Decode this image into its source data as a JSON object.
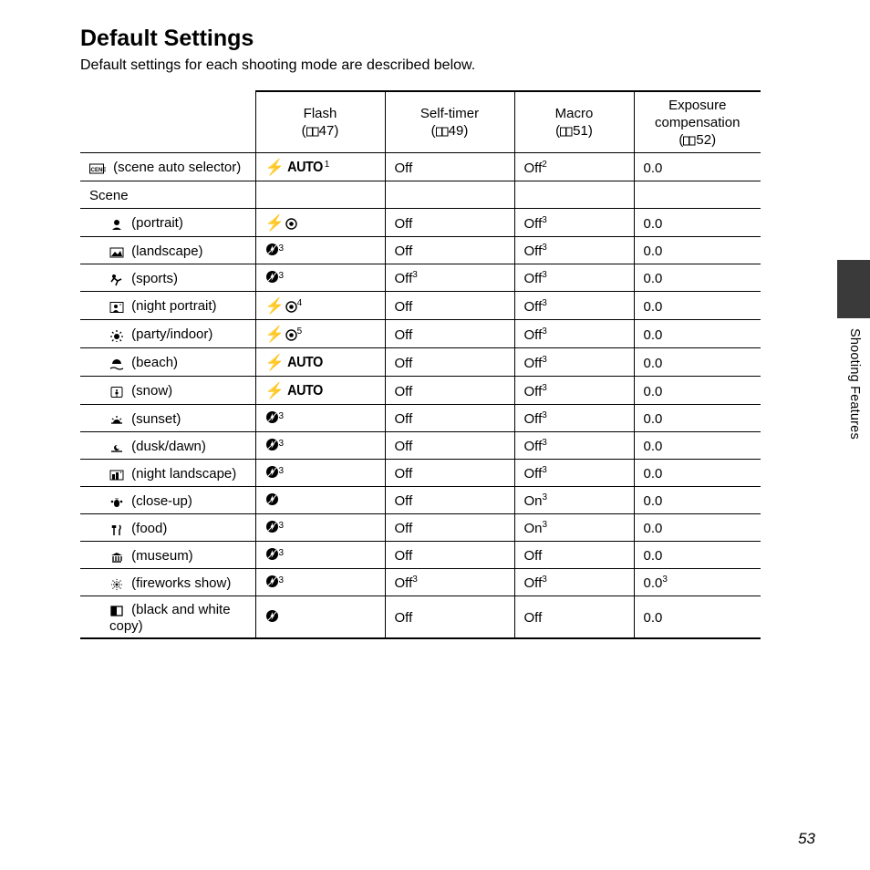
{
  "page": {
    "title": "Default Settings",
    "subtitle": "Default settings for each shooting mode are described below.",
    "side_label": "Shooting Features",
    "page_number": "53"
  },
  "headers": {
    "label": "",
    "flash": "Flash",
    "flash_ref": "47",
    "timer": "Self-timer",
    "timer_ref": "49",
    "macro": "Macro",
    "macro_ref": "51",
    "exp": "Exposure compensation",
    "exp_ref": "52"
  },
  "icons": {
    "flash_off": "flash-off-circle",
    "flash_redeye": "flash-redeye",
    "flash_auto": "flash-auto"
  },
  "rows": [
    {
      "id": "scene-auto",
      "icon": "scene-auto",
      "label": "(scene auto selector)",
      "indent": false,
      "flash": {
        "type": "auto",
        "sup": "1"
      },
      "timer": {
        "text": "Off"
      },
      "macro": {
        "text": "Off",
        "sup": "2"
      },
      "exp": {
        "text": "0.0"
      }
    },
    {
      "id": "scene-header",
      "section": true,
      "label": "Scene"
    },
    {
      "id": "portrait",
      "icon": "portrait",
      "label": "(portrait)",
      "indent": true,
      "flash": {
        "type": "redeye"
      },
      "timer": {
        "text": "Off"
      },
      "macro": {
        "text": "Off",
        "sup": "3"
      },
      "exp": {
        "text": "0.0"
      }
    },
    {
      "id": "landscape",
      "icon": "landscape",
      "label": "(landscape)",
      "indent": true,
      "flash": {
        "type": "off",
        "sup": "3"
      },
      "timer": {
        "text": "Off"
      },
      "macro": {
        "text": "Off",
        "sup": "3"
      },
      "exp": {
        "text": "0.0"
      }
    },
    {
      "id": "sports",
      "icon": "sports",
      "label": "(sports)",
      "indent": true,
      "flash": {
        "type": "off",
        "sup": "3"
      },
      "timer": {
        "text": "Off",
        "sup": "3"
      },
      "macro": {
        "text": "Off",
        "sup": "3"
      },
      "exp": {
        "text": "0.0"
      }
    },
    {
      "id": "night-portrait",
      "icon": "night-portrait",
      "label": "(night portrait)",
      "indent": true,
      "flash": {
        "type": "redeye",
        "sup": "4"
      },
      "timer": {
        "text": "Off"
      },
      "macro": {
        "text": "Off",
        "sup": "3"
      },
      "exp": {
        "text": "0.0"
      }
    },
    {
      "id": "party",
      "icon": "party",
      "label": "(party/indoor)",
      "indent": true,
      "flash": {
        "type": "redeye",
        "sup": "5"
      },
      "timer": {
        "text": "Off"
      },
      "macro": {
        "text": "Off",
        "sup": "3"
      },
      "exp": {
        "text": "0.0"
      }
    },
    {
      "id": "beach",
      "icon": "beach",
      "label": "(beach)",
      "indent": true,
      "flash": {
        "type": "auto"
      },
      "timer": {
        "text": "Off"
      },
      "macro": {
        "text": "Off",
        "sup": "3"
      },
      "exp": {
        "text": "0.0"
      }
    },
    {
      "id": "snow",
      "icon": "snow",
      "label": "(snow)",
      "indent": true,
      "flash": {
        "type": "auto"
      },
      "timer": {
        "text": "Off"
      },
      "macro": {
        "text": "Off",
        "sup": "3"
      },
      "exp": {
        "text": "0.0"
      }
    },
    {
      "id": "sunset",
      "icon": "sunset",
      "label": "(sunset)",
      "indent": true,
      "flash": {
        "type": "off",
        "sup": "3"
      },
      "timer": {
        "text": "Off"
      },
      "macro": {
        "text": "Off",
        "sup": "3"
      },
      "exp": {
        "text": "0.0"
      }
    },
    {
      "id": "dusk",
      "icon": "dusk",
      "label": "(dusk/dawn)",
      "indent": true,
      "flash": {
        "type": "off",
        "sup": "3"
      },
      "timer": {
        "text": "Off"
      },
      "macro": {
        "text": "Off",
        "sup": "3"
      },
      "exp": {
        "text": "0.0"
      }
    },
    {
      "id": "night-landscape",
      "icon": "night-landscape",
      "label": "(night landscape)",
      "indent": true,
      "flash": {
        "type": "off",
        "sup": "3"
      },
      "timer": {
        "text": "Off"
      },
      "macro": {
        "text": "Off",
        "sup": "3"
      },
      "exp": {
        "text": "0.0"
      }
    },
    {
      "id": "closeup",
      "icon": "closeup",
      "label": "(close-up)",
      "indent": true,
      "flash": {
        "type": "off"
      },
      "timer": {
        "text": "Off"
      },
      "macro": {
        "text": "On",
        "sup": "3"
      },
      "exp": {
        "text": "0.0"
      }
    },
    {
      "id": "food",
      "icon": "food",
      "label": "(food)",
      "indent": true,
      "flash": {
        "type": "off",
        "sup": "3"
      },
      "timer": {
        "text": "Off"
      },
      "macro": {
        "text": "On",
        "sup": "3"
      },
      "exp": {
        "text": "0.0"
      }
    },
    {
      "id": "museum",
      "icon": "museum",
      "label": "(museum)",
      "indent": true,
      "flash": {
        "type": "off",
        "sup": "3"
      },
      "timer": {
        "text": "Off"
      },
      "macro": {
        "text": "Off"
      },
      "exp": {
        "text": "0.0"
      }
    },
    {
      "id": "fireworks",
      "icon": "fireworks",
      "label": "(fireworks show)",
      "indent": true,
      "flash": {
        "type": "off",
        "sup": "3"
      },
      "timer": {
        "text": "Off",
        "sup": "3"
      },
      "macro": {
        "text": "Off",
        "sup": "3"
      },
      "exp": {
        "text": "0.0",
        "sup": "3"
      }
    },
    {
      "id": "bw-copy",
      "icon": "bw-copy",
      "label": "(black and white copy)",
      "indent": true,
      "last": true,
      "flash": {
        "type": "off"
      },
      "timer": {
        "text": "Off"
      },
      "macro": {
        "text": "Off"
      },
      "exp": {
        "text": "0.0"
      }
    }
  ],
  "style": {
    "text_color": "#000000",
    "background": "#ffffff",
    "side_tab_color": "#3a3a3a",
    "font_family": "Segoe UI, Arial, sans-serif"
  }
}
